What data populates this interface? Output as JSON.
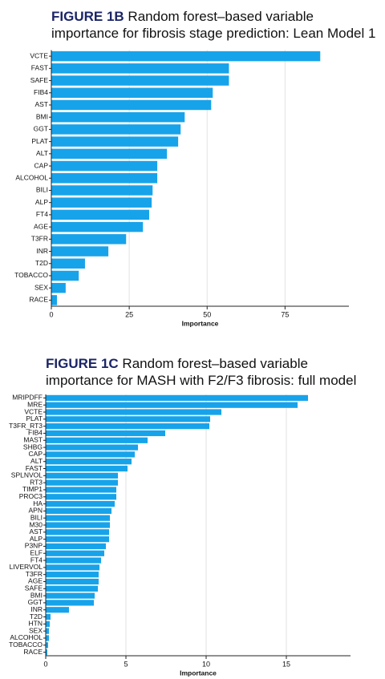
{
  "chart_data": [
    {
      "type": "bar",
      "orientation": "horizontal",
      "title_label": "FIGURE 1B",
      "title": [
        "Random forest–based variable",
        "importance for fibrosis stage prediction: Lean Model 1"
      ],
      "xlabel": "Importance",
      "categories": [
        "VCTE",
        "FAST",
        "SAFE",
        "FIB4",
        "AST",
        "BMI",
        "GGT",
        "PLAT",
        "ALT",
        "CAP",
        "ALCOHOL",
        "BILI",
        "ALP",
        "FT4",
        "AGE",
        "T3FR",
        "INR",
        "T2D",
        "TOBACCO",
        "SEX",
        "RACE"
      ],
      "values": [
        86.3,
        57,
        57,
        51.8,
        51.3,
        42.8,
        41.5,
        40.7,
        37.1,
        34,
        34,
        32.5,
        32.2,
        31.4,
        29.4,
        24,
        18.3,
        10.8,
        8.8,
        4.6,
        1.8
      ],
      "color": "#17a3ea",
      "xlim": [
        0,
        95.5
      ],
      "xticks": [
        0,
        25,
        50,
        75
      ],
      "grid": true
    },
    {
      "type": "bar",
      "orientation": "horizontal",
      "title_label": "FIGURE 1C",
      "title": [
        "Random forest–based variable",
        "importance for MASH with F2/F3 fibrosis: full model"
      ],
      "xlabel": "Importance",
      "categories": [
        "MRIPDFF",
        "MRE",
        "VCTE",
        "PLAT",
        "T3FR_RT3",
        "FIB4",
        "MAST",
        "SHBG",
        "CAP",
        "ALT",
        "FAST",
        "SPLNVOL",
        "RT3",
        "TIMP1",
        "PROC3",
        "HA",
        "APN",
        "BILI",
        "M30",
        "AST",
        "ALP",
        "P3NP",
        "ELF",
        "FT4",
        "LIVERVOL",
        "T3FR",
        "AGE",
        "SAFE",
        "BMI",
        "GGT",
        "INR",
        "T2D",
        "HTN",
        "SEX",
        "ALCOHOL",
        "TOBACCO",
        "RACE"
      ],
      "values": [
        16.35,
        15.7,
        10.95,
        10.25,
        10.2,
        7.45,
        6.35,
        5.75,
        5.55,
        5.35,
        5.1,
        4.5,
        4.5,
        4.4,
        4.4,
        4.3,
        4.1,
        4.0,
        4.0,
        3.95,
        3.95,
        3.75,
        3.65,
        3.45,
        3.35,
        3.3,
        3.3,
        3.25,
        3.05,
        3.0,
        1.45,
        0.3,
        0.25,
        0.2,
        0.2,
        0.15,
        0.1
      ],
      "color": "#17a3ea",
      "xlim": [
        0,
        19
      ],
      "xticks": [
        0,
        5,
        10,
        15
      ],
      "grid": true
    }
  ]
}
